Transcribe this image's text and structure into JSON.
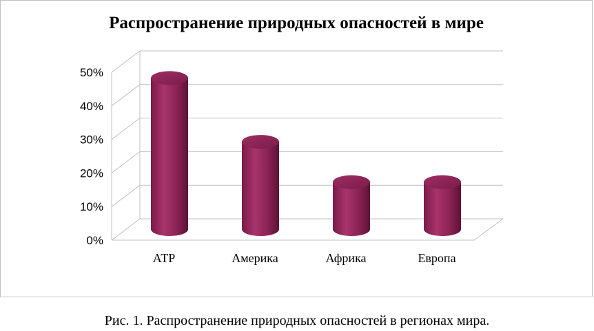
{
  "chart_data": {
    "type": "bar",
    "style": "3d-cylinder",
    "title": "Распространение природных опасностей в мире",
    "categories": [
      "АТР",
      "Америка",
      "Африка",
      "Европа"
    ],
    "values": [
      0.45,
      0.26,
      0.14,
      0.14
    ],
    "y_ticks": [
      "0%",
      "10%",
      "20%",
      "30%",
      "40%",
      "50%"
    ],
    "ylim": [
      0,
      0.5
    ],
    "grid": true,
    "legend": "none",
    "bar_color": "#8b1f52"
  },
  "caption": "Рис. 1. Распространение природных опасностей в регионах мира."
}
